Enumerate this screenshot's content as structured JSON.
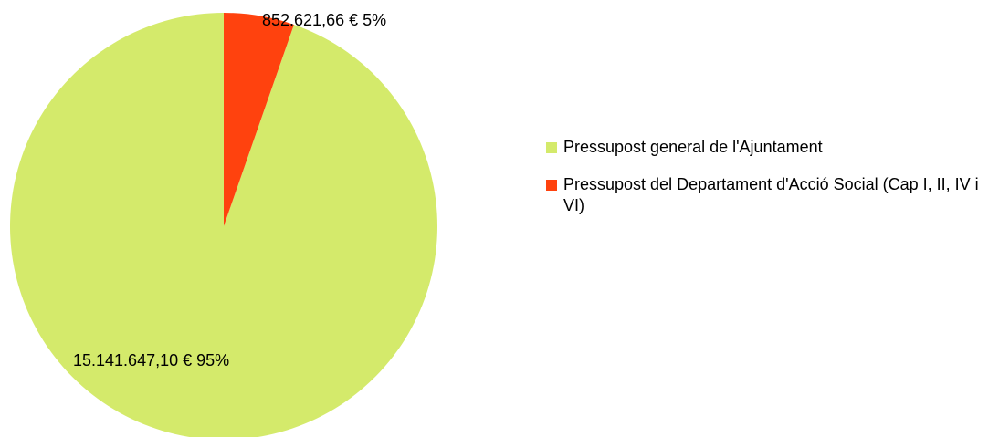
{
  "chart_data": {
    "type": "pie",
    "categories": [
      "Pressupost general de l'Ajuntament",
      "Pressupost del Departament d'Acció Social (Cap I, II, IV i VI)"
    ],
    "values": [
      15141647.1,
      852621.66
    ],
    "value_labels": [
      "15.141.647,10 € 95%",
      "852.621,66 € 5%"
    ],
    "colors": [
      "#d4ea6b",
      "#ff420e"
    ],
    "legend": "right"
  }
}
